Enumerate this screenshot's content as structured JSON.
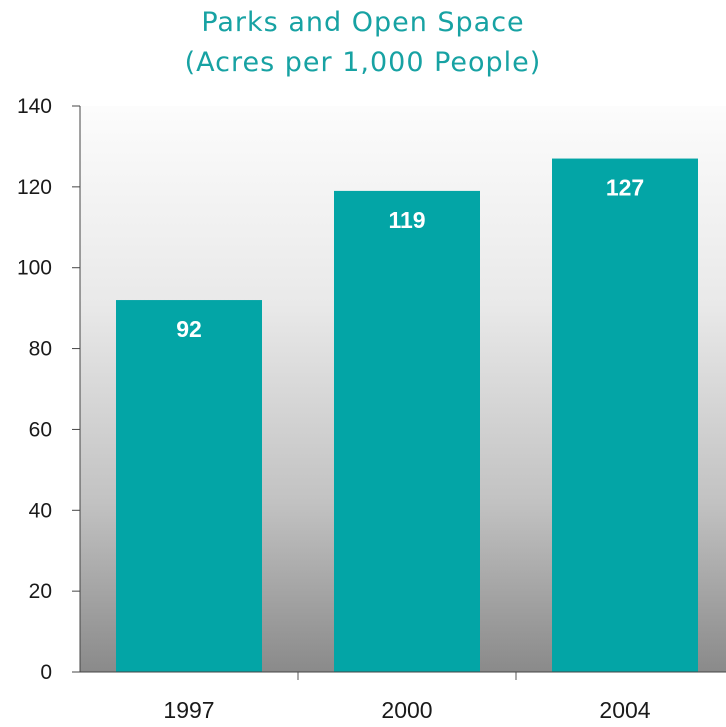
{
  "chart_data": {
    "type": "bar",
    "title": [
      "Parks and Open Space",
      "(Acres per 1,000 People)"
    ],
    "xlabel": "",
    "ylabel": "",
    "categories": [
      "1997",
      "2000",
      "2004"
    ],
    "values": [
      92,
      119,
      127
    ],
    "data_labels": [
      "92",
      "119",
      "127"
    ],
    "ylim": [
      0,
      140
    ],
    "yticks": [
      0,
      20,
      40,
      60,
      80,
      100,
      120,
      140
    ],
    "ytick_labels": [
      "0",
      "20",
      "40",
      "60",
      "80",
      "100",
      "120",
      "140"
    ],
    "grid": false,
    "legend": "none",
    "bar_color": "#03a5a6",
    "title_color": "#17a2a3",
    "background": "gradient white to gray"
  }
}
